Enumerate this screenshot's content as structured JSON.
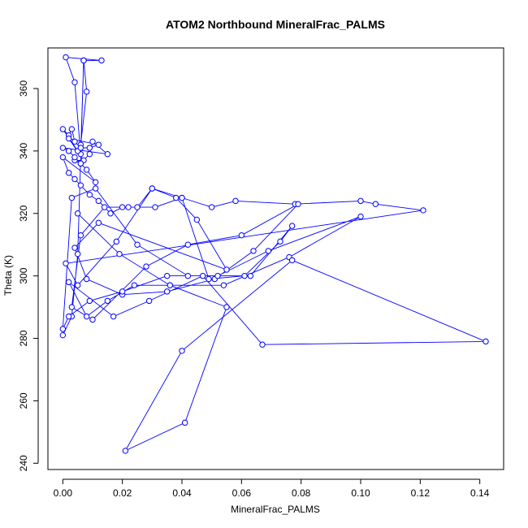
{
  "chart_data": {
    "type": "line",
    "title": "ATOM2 Northbound MineralFrac_PALMS",
    "xlabel": "MineralFrac_PALMS",
    "ylabel": "Theta (K)",
    "xlim": [
      -0.005,
      0.148
    ],
    "ylim": [
      238,
      373
    ],
    "xticks": [
      0.0,
      0.02,
      0.04,
      0.06,
      0.08,
      0.1,
      0.12,
      0.14
    ],
    "xtick_labels": [
      "0.00",
      "0.02",
      "0.04",
      "0.06",
      "0.08",
      "0.10",
      "0.12",
      "0.14"
    ],
    "yticks": [
      240,
      260,
      280,
      300,
      320,
      340,
      360
    ],
    "ytick_labels": [
      "240",
      "260",
      "280",
      "300",
      "320",
      "340",
      "360"
    ],
    "markers": "open-circle",
    "grid": false,
    "colors": {
      "series": "#0000ff",
      "axes": "#000000"
    },
    "series": [
      {
        "x": [
          0.0,
          0.003,
          0.005,
          0.007,
          0.013,
          0.001,
          0.004,
          0.006,
          0.007,
          0.008,
          0.006,
          0.005,
          0.0,
          0.002,
          0.003,
          0.004,
          0.006,
          0.009,
          0.012,
          0.002,
          0.007,
          0.004,
          0.006,
          0.009,
          0.01,
          0.015,
          0.0,
          0.002,
          0.004,
          0.006,
          0.008,
          0.011,
          0.0,
          0.002,
          0.004,
          0.006,
          0.009,
          0.012,
          0.016,
          0.02,
          0.025,
          0.03,
          0.04,
          0.05,
          0.058,
          0.078,
          0.1,
          0.105,
          0.121,
          0.001,
          0.005,
          0.018,
          0.03,
          0.038,
          0.045,
          0.055,
          0.012,
          0.004,
          0.008,
          0.02,
          0.035,
          0.051,
          0.064,
          0.079,
          0.06,
          0.042,
          0.028,
          0.01,
          0.003,
          0.006,
          0.014,
          0.022,
          0.031,
          0.04,
          0.049,
          0.061,
          0.073,
          0.077,
          0.063,
          0.042,
          0.025,
          0.011,
          0.003,
          0.0,
          0.002,
          0.009,
          0.02,
          0.035,
          0.052,
          0.069,
          0.1,
          0.076,
          0.054,
          0.036,
          0.024,
          0.015,
          0.008,
          0.002,
          0.017,
          0.029,
          0.047,
          0.067,
          0.142,
          0.077,
          0.04,
          0.021,
          0.041,
          0.055,
          0.036,
          0.019,
          0.005
        ],
        "y": [
          281,
          287,
          307,
          369,
          369,
          370,
          362,
          339,
          369,
          359,
          342,
          340,
          347,
          345,
          347,
          343,
          341,
          341,
          342,
          344,
          337,
          337,
          336,
          339,
          343,
          339,
          341,
          340,
          338,
          336,
          334,
          330,
          338,
          333,
          331,
          329,
          326,
          324,
          320,
          322,
          322,
          328,
          325,
          322,
          324,
          323,
          324,
          323,
          321,
          304,
          297,
          311,
          328,
          325,
          318,
          302,
          317,
          309,
          299,
          294,
          295,
          299,
          308,
          323,
          313,
          310,
          303,
          286,
          290,
          313,
          322,
          322,
          322,
          325,
          299,
          300,
          311,
          316,
          300,
          300,
          310,
          328,
          325,
          283,
          287,
          292,
          295,
          300,
          300,
          308,
          319,
          306,
          297,
          297,
          297,
          292,
          287,
          298,
          287,
          292,
          300,
          278,
          279,
          305,
          276,
          244,
          253,
          290,
          297,
          307,
          320
        ]
      }
    ]
  }
}
